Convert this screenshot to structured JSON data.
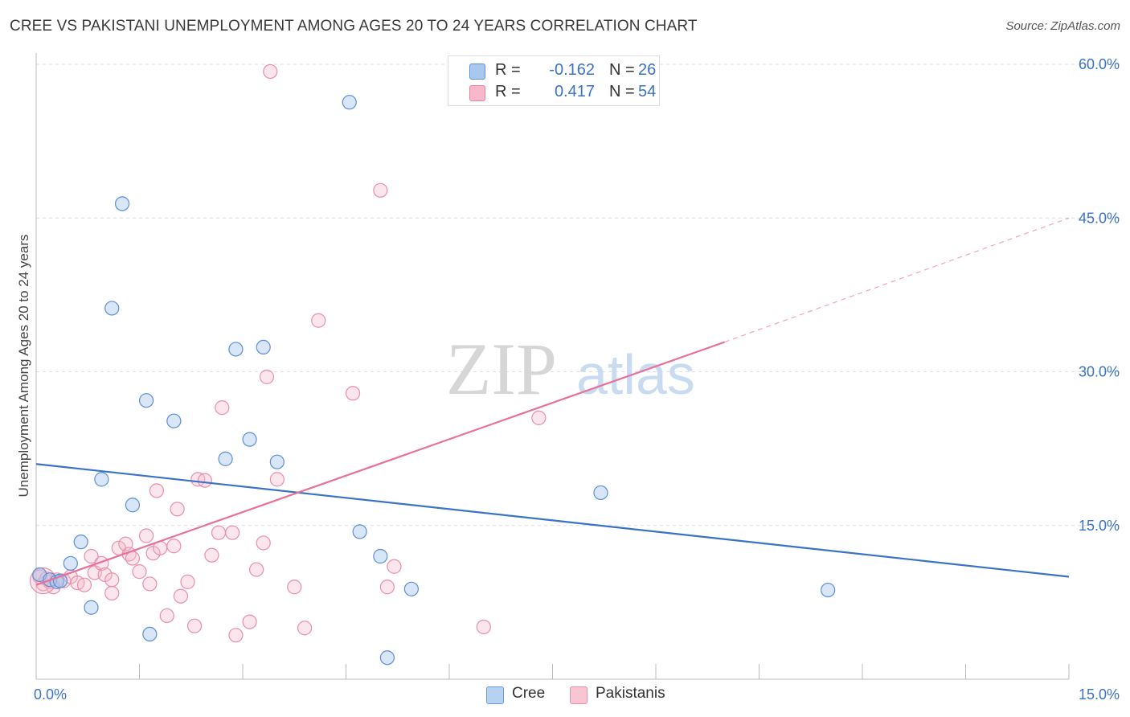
{
  "title": "CREE VS PAKISTANI UNEMPLOYMENT AMONG AGES 20 TO 24 YEARS CORRELATION CHART",
  "source": "Source: ZipAtlas.com",
  "watermark": {
    "zip": "ZIP",
    "atlas": "atlas"
  },
  "legend": {
    "r_label": "R =",
    "n_label": "N =",
    "rows": [
      {
        "r": "-0.162",
        "n": "26",
        "color": "#a8c8f0",
        "border": "#5b8fd6"
      },
      {
        "r": "0.417",
        "n": "54",
        "color": "#f7b8cb",
        "border": "#e8819f"
      }
    ]
  },
  "bottom_legend": [
    {
      "label": "Cree",
      "color": "#b7d1f3",
      "border": "#6d9ad8"
    },
    {
      "label": "Pakistanis",
      "color": "#f8c5d3",
      "border": "#e98ea9"
    }
  ],
  "chart_data": {
    "type": "scatter",
    "title": "CREE VS PAKISTANI UNEMPLOYMENT AMONG AGES 20 TO 24 YEARS CORRELATION CHART",
    "xlabel": "",
    "ylabel": "Unemployment Among Ages 20 to 24 years",
    "xlim": [
      0,
      15
    ],
    "ylim": [
      0,
      60
    ],
    "x_tick_labels": [
      "0.0%",
      "15.0%"
    ],
    "y_ticks": [
      15,
      30,
      45,
      60
    ],
    "y_tick_labels": [
      "15.0%",
      "30.0%",
      "45.0%",
      "60.0%"
    ],
    "grid": true,
    "colors": {
      "cree": "#3a72c8",
      "pakistanis": "#e8709a",
      "tick": "#3a72c8"
    },
    "series": [
      {
        "name": "Cree",
        "points": [
          [
            0.05,
            10.2
          ],
          [
            0.2,
            9.7
          ],
          [
            0.3,
            9.5
          ],
          [
            0.35,
            9.6
          ],
          [
            0.5,
            11.3
          ],
          [
            0.65,
            13.4
          ],
          [
            0.8,
            7.0
          ],
          [
            0.95,
            19.5
          ],
          [
            1.1,
            36.2
          ],
          [
            1.25,
            46.4
          ],
          [
            1.4,
            17.0
          ],
          [
            1.6,
            27.2
          ],
          [
            1.65,
            4.4
          ],
          [
            2.0,
            25.2
          ],
          [
            2.75,
            21.5
          ],
          [
            2.9,
            32.2
          ],
          [
            3.1,
            23.4
          ],
          [
            3.3,
            32.4
          ],
          [
            3.5,
            21.2
          ],
          [
            4.55,
            56.3
          ],
          [
            4.7,
            14.4
          ],
          [
            5.0,
            12.0
          ],
          [
            5.1,
            2.1
          ],
          [
            5.45,
            8.8
          ],
          [
            8.2,
            18.2
          ],
          [
            11.5,
            8.7
          ]
        ],
        "trend": {
          "x0": 0.0,
          "y0": 21.0,
          "x1": 15.0,
          "y1": 10.0
        }
      },
      {
        "name": "Pakistanis",
        "points": [
          [
            0.05,
            10.0
          ],
          [
            0.1,
            9.3
          ],
          [
            0.15,
            9.8
          ],
          [
            0.2,
            9.5
          ],
          [
            0.3,
            9.7
          ],
          [
            0.4,
            9.6
          ],
          [
            0.5,
            10.0
          ],
          [
            0.6,
            9.4
          ],
          [
            0.7,
            9.2
          ],
          [
            0.8,
            12.0
          ],
          [
            0.85,
            10.4
          ],
          [
            0.95,
            11.3
          ],
          [
            1.0,
            10.2
          ],
          [
            1.1,
            8.4
          ],
          [
            1.2,
            12.8
          ],
          [
            1.3,
            13.2
          ],
          [
            1.35,
            12.2
          ],
          [
            1.4,
            11.8
          ],
          [
            1.5,
            10.5
          ],
          [
            1.6,
            14.0
          ],
          [
            1.65,
            9.3
          ],
          [
            1.7,
            12.3
          ],
          [
            1.75,
            18.4
          ],
          [
            1.8,
            12.8
          ],
          [
            1.9,
            6.2
          ],
          [
            2.0,
            13.0
          ],
          [
            2.05,
            16.6
          ],
          [
            2.1,
            8.1
          ],
          [
            2.2,
            9.5
          ],
          [
            2.3,
            5.2
          ],
          [
            2.35,
            19.5
          ],
          [
            2.45,
            19.4
          ],
          [
            2.55,
            12.1
          ],
          [
            2.65,
            14.3
          ],
          [
            2.7,
            26.5
          ],
          [
            2.85,
            14.3
          ],
          [
            2.9,
            4.3
          ],
          [
            3.1,
            5.6
          ],
          [
            3.2,
            10.7
          ],
          [
            3.3,
            13.3
          ],
          [
            3.35,
            29.5
          ],
          [
            3.5,
            19.5
          ],
          [
            3.75,
            9.0
          ],
          [
            3.9,
            5.0
          ],
          [
            4.1,
            35.0
          ],
          [
            4.6,
            27.9
          ],
          [
            5.0,
            47.7
          ],
          [
            5.1,
            9.0
          ],
          [
            5.2,
            11.0
          ],
          [
            6.5,
            5.1
          ],
          [
            7.3,
            25.5
          ],
          [
            1.1,
            9.7
          ],
          [
            0.25,
            9.0
          ],
          [
            3.4,
            59.3
          ]
        ],
        "trend": {
          "x0": 0.0,
          "y0": 9.2,
          "x1": 10.0,
          "y1": 32.9,
          "dash_x1": 15.0,
          "dash_y1": 45.0
        }
      }
    ]
  }
}
